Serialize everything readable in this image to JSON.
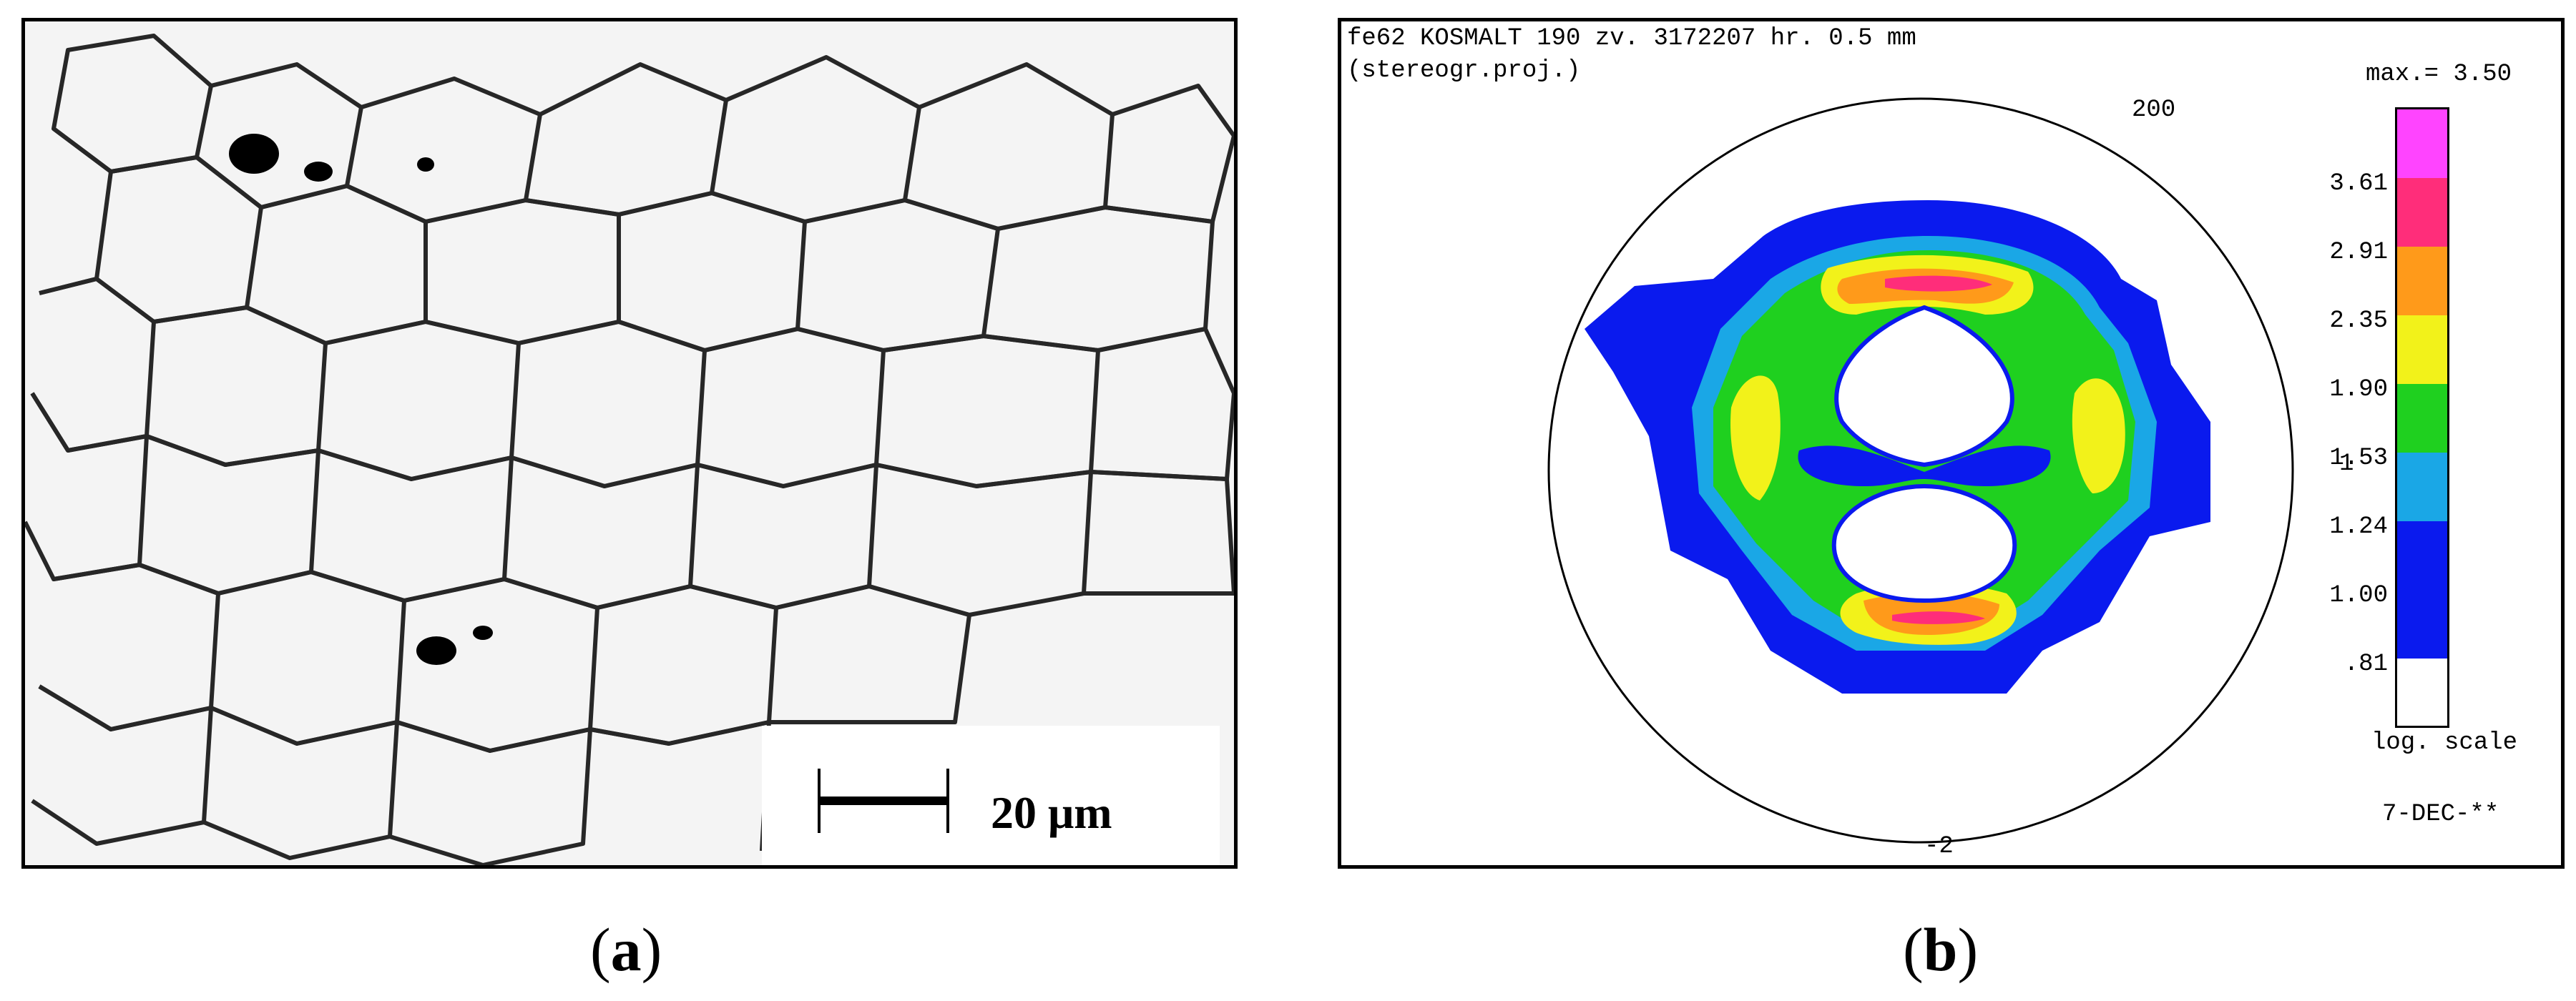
{
  "figure": {
    "panel_a": {
      "caption_letter": "a",
      "scale_bar_label": "20 μm"
    },
    "panel_b": {
      "caption_letter": "b",
      "header_line1": "fe62 KOSMALT 190 zv. 3172207 hr. 0.5 mm",
      "header_line2": "(stereogr.proj.)",
      "max_label": "max.= 3.50",
      "pole_label": "200",
      "label_top": "200",
      "label_right": "1",
      "label_bottom": "-2",
      "scale_note": "log. scale",
      "date_label": "7-DEC-**",
      "legend": [
        {
          "label": "3.61",
          "color": "#ff44ff"
        },
        {
          "label": "2.91",
          "color": "#ff2d7a"
        },
        {
          "label": "2.35",
          "color": "#ff9a1a"
        },
        {
          "label": "1.90",
          "color": "#f2f21a"
        },
        {
          "label": "1.53",
          "color": "#1fd01f"
        },
        {
          "label": "1.24",
          "color": "#1aa7e6"
        },
        {
          "label": "1.00",
          "color": "#0a1aee"
        },
        {
          "label": ".81",
          "color": "#0a1aee"
        },
        {
          "label": "",
          "color": "#ffffff"
        }
      ]
    }
  }
}
